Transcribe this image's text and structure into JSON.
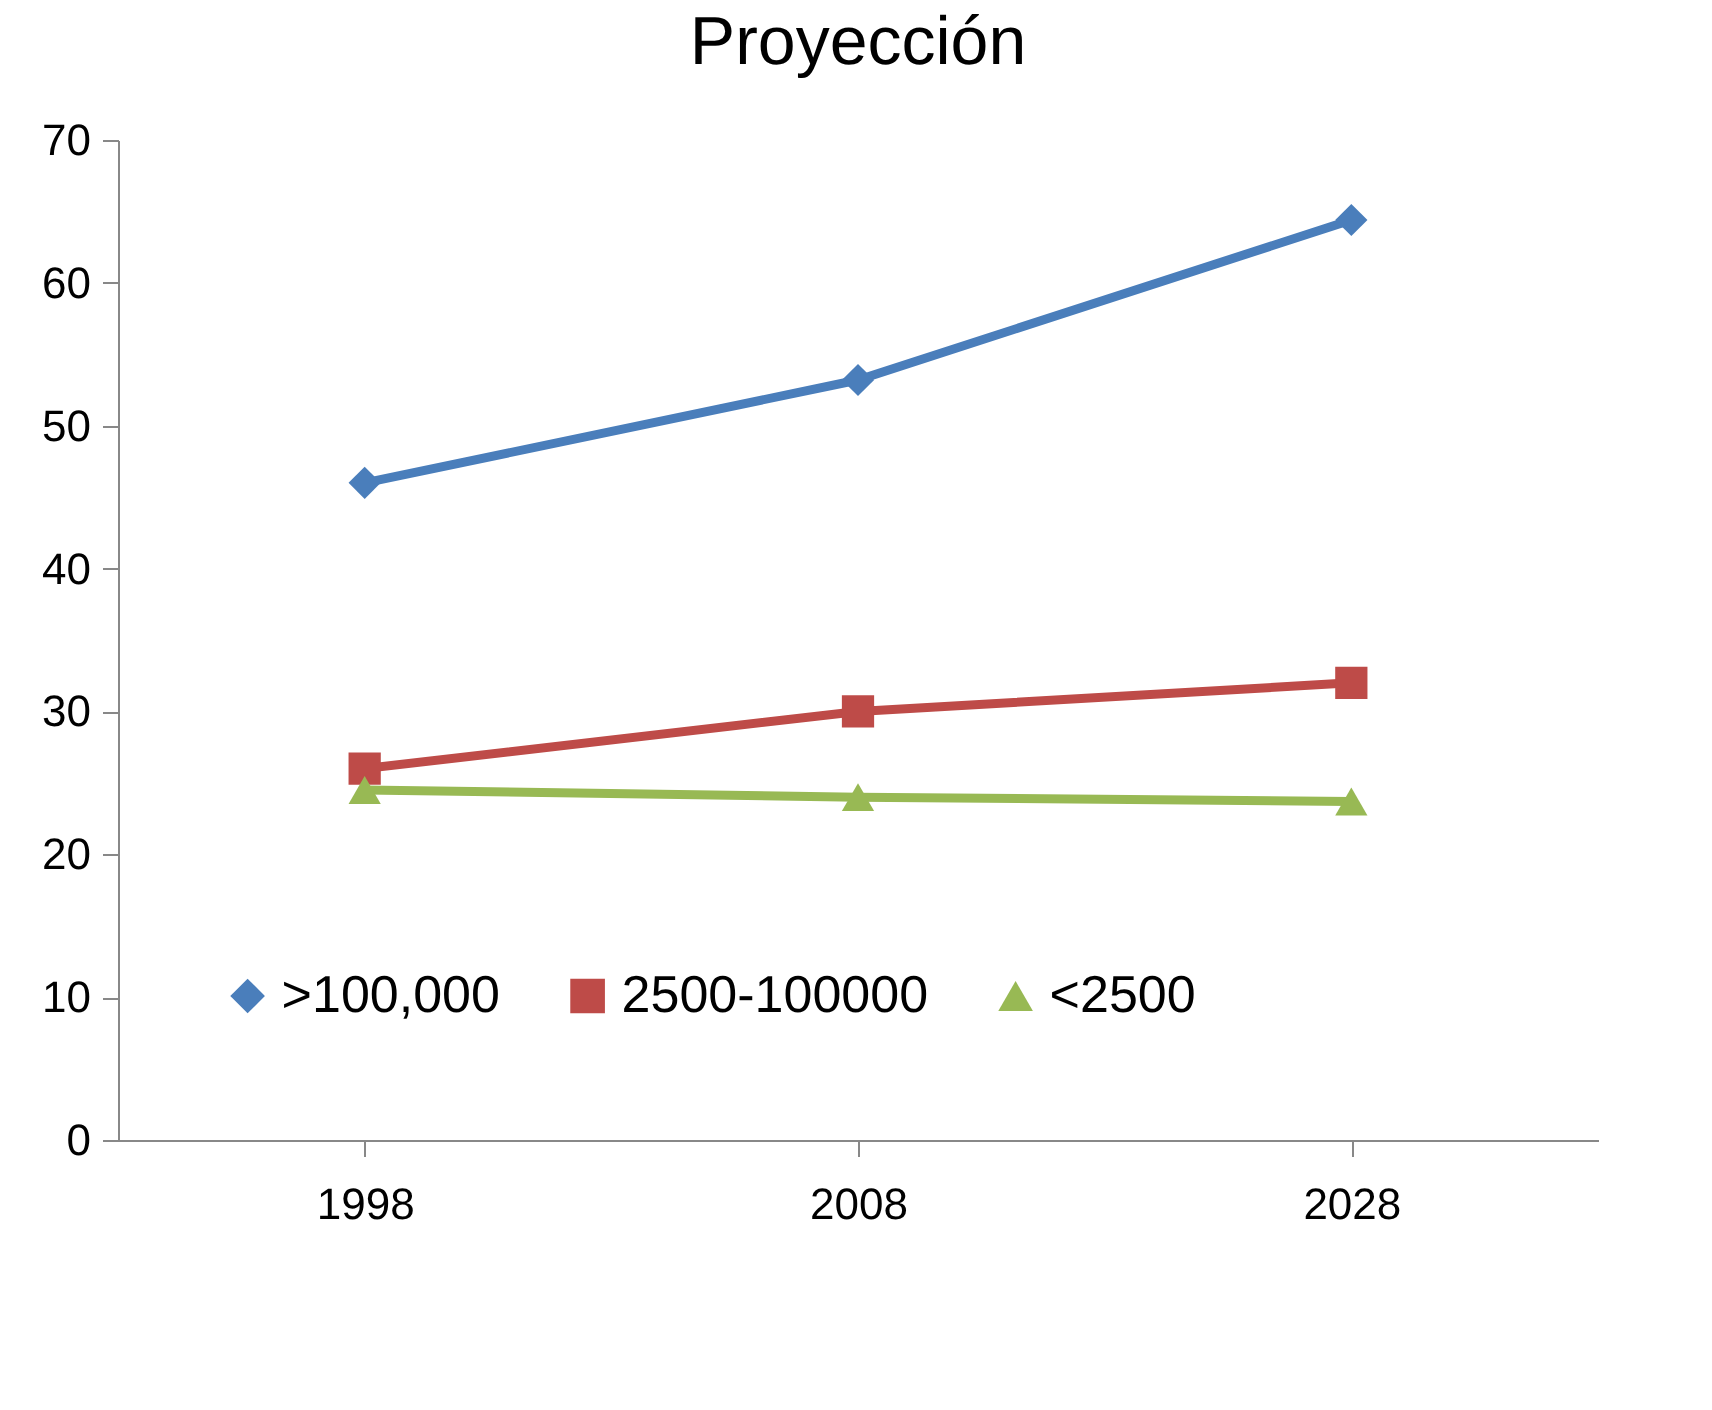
{
  "chart_data": {
    "type": "line",
    "title": "Proyección",
    "categories": [
      "1998",
      "2008",
      "2028"
    ],
    "series": [
      {
        "name": ">100,000",
        "color": "#4a7ebb",
        "marker": "diamond",
        "values": [
          46,
          53.2,
          64.4
        ]
      },
      {
        "name": "2500-100000",
        "color": "#be4b48",
        "marker": "square",
        "values": [
          26,
          30,
          32
        ]
      },
      {
        "name": "<2500",
        "color": "#98b954",
        "marker": "triangle",
        "values": [
          24.5,
          24,
          23.7
        ]
      }
    ],
    "ylim": [
      0,
      70
    ],
    "yticks": [
      0,
      10,
      20,
      30,
      40,
      50,
      60,
      70
    ],
    "grid": false,
    "legend": "bottom"
  }
}
